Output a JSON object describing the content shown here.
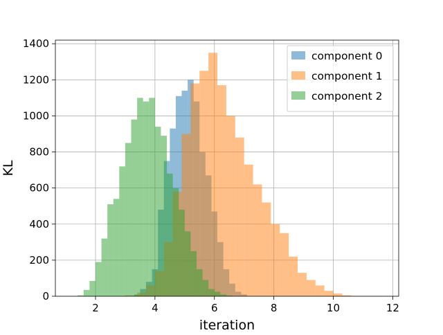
{
  "chart_data": {
    "type": "bar",
    "subtype": "histogram",
    "title": "",
    "xlabel": "iteration",
    "ylabel": "KL",
    "xlim": [
      0.65,
      12.2
    ],
    "ylim": [
      0,
      1420
    ],
    "xticks": [
      2,
      4,
      6,
      8,
      10,
      12
    ],
    "yticks": [
      0,
      200,
      400,
      600,
      800,
      1000,
      1200,
      1400
    ],
    "grid": true,
    "legend_position": "top-right",
    "series": [
      {
        "name": "component 0",
        "color": "#1f77b4",
        "bins": [
          [
            3.3,
            3.5,
            10
          ],
          [
            3.5,
            3.7,
            40
          ],
          [
            3.7,
            3.9,
            80
          ],
          [
            3.9,
            4.1,
            150
          ],
          [
            4.1,
            4.3,
            480
          ],
          [
            4.3,
            4.5,
            750
          ],
          [
            4.5,
            4.7,
            930
          ],
          [
            4.7,
            4.9,
            1110
          ],
          [
            4.9,
            5.1,
            1140
          ],
          [
            5.1,
            5.3,
            1200
          ],
          [
            5.3,
            5.5,
            1080
          ],
          [
            5.5,
            5.7,
            800
          ],
          [
            5.7,
            5.9,
            670
          ],
          [
            5.9,
            6.1,
            470
          ],
          [
            6.1,
            6.3,
            300
          ],
          [
            6.3,
            6.5,
            150
          ],
          [
            6.5,
            6.7,
            70
          ],
          [
            6.7,
            6.9,
            25
          ],
          [
            6.9,
            7.1,
            10
          ]
        ]
      },
      {
        "name": "component 1",
        "color": "#ff7f0e",
        "bins": [
          [
            3.0,
            3.4,
            5
          ],
          [
            3.4,
            3.7,
            20
          ],
          [
            3.7,
            4.0,
            60
          ],
          [
            4.0,
            4.3,
            140
          ],
          [
            4.3,
            4.6,
            300
          ],
          [
            4.6,
            4.9,
            580
          ],
          [
            4.9,
            5.2,
            900
          ],
          [
            5.2,
            5.5,
            1180
          ],
          [
            5.5,
            5.8,
            1250
          ],
          [
            5.8,
            6.1,
            1350
          ],
          [
            6.1,
            6.4,
            1170
          ],
          [
            6.4,
            6.7,
            1000
          ],
          [
            6.7,
            7.0,
            880
          ],
          [
            7.0,
            7.3,
            730
          ],
          [
            7.3,
            7.6,
            620
          ],
          [
            7.6,
            7.9,
            520
          ],
          [
            7.9,
            8.2,
            400
          ],
          [
            8.2,
            8.5,
            350
          ],
          [
            8.5,
            8.8,
            220
          ],
          [
            8.8,
            9.1,
            130
          ],
          [
            9.1,
            9.4,
            90
          ],
          [
            9.4,
            9.7,
            60
          ],
          [
            9.7,
            10.0,
            30
          ],
          [
            10.0,
            10.3,
            15
          ],
          [
            10.3,
            10.6,
            5
          ],
          [
            10.6,
            11.6,
            2
          ]
        ]
      },
      {
        "name": "component 2",
        "color": "#2ca02c",
        "bins": [
          [
            1.4,
            1.6,
            5
          ],
          [
            1.6,
            1.8,
            35
          ],
          [
            1.8,
            2.0,
            85
          ],
          [
            2.0,
            2.2,
            190
          ],
          [
            2.2,
            2.4,
            320
          ],
          [
            2.4,
            2.6,
            510
          ],
          [
            2.6,
            2.8,
            540
          ],
          [
            2.8,
            3.0,
            720
          ],
          [
            3.0,
            3.2,
            850
          ],
          [
            3.2,
            3.4,
            980
          ],
          [
            3.4,
            3.6,
            1100
          ],
          [
            3.6,
            3.8,
            1080
          ],
          [
            3.8,
            4.0,
            1100
          ],
          [
            4.0,
            4.2,
            940
          ],
          [
            4.2,
            4.4,
            890
          ],
          [
            4.4,
            4.6,
            680
          ],
          [
            4.6,
            4.8,
            600
          ],
          [
            4.8,
            5.0,
            480
          ],
          [
            5.0,
            5.2,
            360
          ],
          [
            5.2,
            5.4,
            250
          ],
          [
            5.4,
            5.6,
            150
          ],
          [
            5.6,
            5.8,
            90
          ],
          [
            5.8,
            6.0,
            40
          ],
          [
            6.0,
            6.2,
            25
          ],
          [
            6.2,
            6.4,
            10
          ],
          [
            6.4,
            6.6,
            4
          ]
        ]
      }
    ]
  }
}
